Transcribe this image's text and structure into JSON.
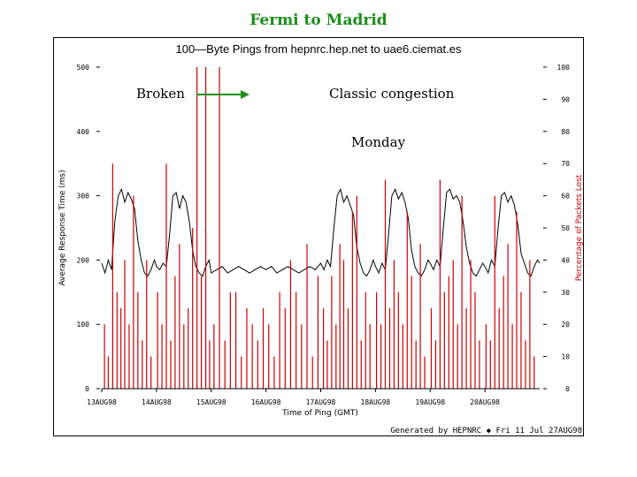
{
  "slide": {
    "title": "Fermi to Madrid"
  },
  "annotations": {
    "broken": "Broken",
    "congestion": "Classic congestion",
    "monday": "Monday"
  },
  "chart_data": {
    "type": "line",
    "title": "100—Byte Pings from hepnrc.hep.net to uae6.ciemat.es",
    "xlabel": "Time of Ping (GMT)",
    "ylabel": "Average Response Time (ms)",
    "y2label": "Percentage of Packets Lost",
    "footer": "Generated by HEPNRC ◆ Fri 11 Jul 27AUG98",
    "ylim": [
      0,
      500
    ],
    "y2lim": [
      0,
      100
    ],
    "yticks": [
      "0",
      "100",
      "200",
      "300",
      "400",
      "500"
    ],
    "y2ticks": [
      "0",
      "10",
      "20",
      "30",
      "40",
      "50",
      "60",
      "70",
      "80",
      "90",
      "100"
    ],
    "xticks": [
      "13AUG98",
      "14AUG98",
      "15AUG98",
      "16AUG98",
      "17AUG98",
      "18AUG98",
      "19AUG98",
      "20AUG98"
    ],
    "series": [
      {
        "color": "#000000",
        "x": [
          0,
          0.06,
          0.12,
          0.18,
          0.24,
          0.3,
          0.36,
          0.42,
          0.48,
          0.54,
          0.6,
          0.66,
          0.72,
          0.78,
          0.84,
          0.9,
          0.96,
          1.0,
          1.06,
          1.12,
          1.18,
          1.24,
          1.3,
          1.36,
          1.42,
          1.48,
          1.54,
          1.6,
          1.66,
          1.72,
          1.78,
          1.84,
          1.9,
          1.96,
          2.0,
          2.1,
          2.2,
          2.3,
          2.4,
          2.5,
          2.6,
          2.7,
          2.8,
          2.9,
          3.0,
          3.1,
          3.2,
          3.3,
          3.4,
          3.5,
          3.6,
          3.7,
          3.8,
          3.9,
          4.0,
          4.06,
          4.12,
          4.18,
          4.24,
          4.3,
          4.36,
          4.42,
          4.48,
          4.54,
          4.6,
          4.66,
          4.72,
          4.78,
          4.84,
          4.9,
          4.96,
          5.0,
          5.06,
          5.12,
          5.18,
          5.24,
          5.3,
          5.36,
          5.42,
          5.48,
          5.54,
          5.6,
          5.66,
          5.72,
          5.78,
          5.84,
          5.9,
          5.96,
          6.0,
          6.06,
          6.12,
          6.18,
          6.24,
          6.3,
          6.36,
          6.42,
          6.48,
          6.54,
          6.6,
          6.66,
          6.72,
          6.78,
          6.84,
          6.9,
          6.96,
          7.0,
          7.06,
          7.12,
          7.18,
          7.24,
          7.3,
          7.36,
          7.42,
          7.48,
          7.54,
          7.6,
          7.66,
          7.72,
          7.78,
          7.84,
          7.9,
          7.96,
          8.0
        ],
        "values": [
          195,
          180,
          200,
          185,
          260,
          300,
          310,
          290,
          305,
          295,
          280,
          230,
          200,
          180,
          175,
          185,
          200,
          190,
          185,
          195,
          190,
          240,
          300,
          305,
          280,
          300,
          290,
          260,
          215,
          190,
          180,
          175,
          190,
          200,
          180,
          185,
          190,
          180,
          185,
          190,
          185,
          180,
          185,
          190,
          185,
          190,
          180,
          185,
          190,
          185,
          180,
          185,
          190,
          185,
          195,
          185,
          200,
          190,
          250,
          300,
          310,
          290,
          300,
          285,
          270,
          220,
          195,
          180,
          175,
          185,
          200,
          190,
          180,
          195,
          185,
          240,
          300,
          310,
          295,
          305,
          290,
          265,
          215,
          190,
          180,
          175,
          185,
          200,
          195,
          185,
          200,
          190,
          250,
          305,
          310,
          295,
          300,
          290,
          260,
          220,
          195,
          180,
          175,
          185,
          195,
          190,
          180,
          200,
          190,
          250,
          300,
          305,
          290,
          300,
          285,
          255,
          210,
          195,
          180,
          175,
          190,
          200,
          195
        ]
      },
      {
        "color": "#cc0000",
        "axis": "right",
        "x": [
          0.05,
          0.12,
          0.2,
          0.28,
          0.35,
          0.42,
          0.5,
          0.58,
          0.66,
          0.74,
          0.82,
          0.9,
          1.02,
          1.1,
          1.18,
          1.26,
          1.34,
          1.42,
          1.5,
          1.58,
          1.66,
          1.74,
          1.82,
          1.9,
          1.97,
          2.05,
          2.15,
          2.25,
          2.35,
          2.45,
          2.55,
          2.65,
          2.75,
          2.85,
          2.95,
          3.05,
          3.15,
          3.25,
          3.35,
          3.45,
          3.55,
          3.65,
          3.75,
          3.85,
          3.95,
          4.05,
          4.12,
          4.2,
          4.28,
          4.35,
          4.42,
          4.5,
          4.58,
          4.66,
          4.74,
          4.82,
          4.9,
          5.02,
          5.1,
          5.18,
          5.26,
          5.34,
          5.42,
          5.5,
          5.58,
          5.66,
          5.74,
          5.82,
          5.9,
          6.02,
          6.1,
          6.18,
          6.26,
          6.34,
          6.42,
          6.5,
          6.58,
          6.66,
          6.74,
          6.82,
          6.9,
          7.02,
          7.1,
          7.18,
          7.26,
          7.34,
          7.42,
          7.5,
          7.58,
          7.66,
          7.74,
          7.82,
          7.9
        ],
        "values": [
          20,
          10,
          70,
          30,
          25,
          40,
          20,
          60,
          30,
          15,
          40,
          10,
          30,
          20,
          70,
          15,
          35,
          45,
          20,
          25,
          50,
          100,
          35,
          100,
          15,
          20,
          100,
          15,
          30,
          30,
          10,
          25,
          20,
          15,
          25,
          20,
          10,
          30,
          25,
          40,
          30,
          20,
          45,
          10,
          35,
          25,
          15,
          35,
          20,
          45,
          40,
          25,
          55,
          60,
          15,
          30,
          20,
          30,
          20,
          65,
          25,
          40,
          30,
          20,
          55,
          35,
          15,
          45,
          10,
          25,
          15,
          65,
          30,
          35,
          40,
          20,
          60,
          25,
          40,
          30,
          15,
          20,
          15,
          60,
          25,
          35,
          45,
          20,
          55,
          30,
          15,
          40,
          10
        ]
      }
    ]
  }
}
